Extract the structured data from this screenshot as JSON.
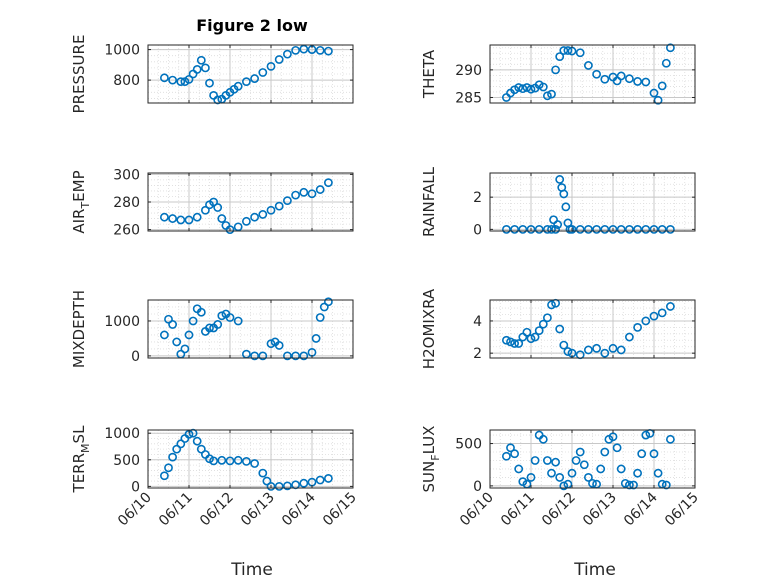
{
  "figure": {
    "title": "Figure 2 low",
    "xlabel": "Time"
  },
  "style": {
    "marker_color": "#0072bd",
    "axis_color": "#262626",
    "grid_color": "#dcdcdc"
  },
  "chart_data": [
    {
      "type": "scatter",
      "ylabel": "PRESSURE",
      "ylabel_sub": "",
      "ylabel_rest": "",
      "xlim": [
        0,
        5
      ],
      "ylim": [
        650,
        1030
      ],
      "yticks": [
        800,
        1000
      ],
      "xticks": [
        "06/10",
        "06/11",
        "06/12",
        "06/13",
        "06/14",
        "06/15"
      ],
      "x": [
        0.4,
        0.6,
        0.8,
        0.9,
        1.0,
        1.1,
        1.2,
        1.3,
        1.4,
        1.5,
        1.6,
        1.7,
        1.8,
        1.9,
        2.0,
        2.1,
        2.2,
        2.4,
        2.6,
        2.8,
        3.0,
        3.2,
        3.4,
        3.6,
        3.8,
        4.0,
        4.2,
        4.4
      ],
      "y": [
        815,
        800,
        790,
        790,
        805,
        840,
        870,
        930,
        880,
        780,
        700,
        670,
        675,
        700,
        720,
        740,
        760,
        790,
        810,
        850,
        890,
        935,
        970,
        995,
        1003,
        1000,
        995,
        990
      ]
    },
    {
      "type": "scatter",
      "ylabel": "THETA",
      "ylabel_sub": "",
      "ylabel_rest": "",
      "xlim": [
        0,
        5
      ],
      "ylim": [
        284,
        294.5
      ],
      "yticks": [
        285,
        290
      ],
      "xticks": [
        "06/10",
        "06/11",
        "06/12",
        "06/13",
        "06/14",
        "06/15"
      ],
      "x": [
        0.4,
        0.5,
        0.6,
        0.7,
        0.8,
        0.9,
        1.0,
        1.1,
        1.2,
        1.3,
        1.4,
        1.5,
        1.6,
        1.7,
        1.8,
        1.9,
        2.0,
        2.2,
        2.4,
        2.6,
        2.8,
        3.0,
        3.1,
        3.2,
        3.4,
        3.6,
        3.8,
        4.0,
        4.1,
        4.2,
        4.3,
        4.4
      ],
      "y": [
        285.0,
        285.8,
        286.4,
        286.8,
        286.6,
        286.8,
        286.5,
        286.7,
        287.3,
        286.9,
        285.3,
        285.6,
        290.0,
        292.4,
        293.5,
        293.5,
        293.4,
        293.1,
        290.8,
        289.2,
        288.3,
        288.7,
        288.0,
        288.9,
        288.4,
        287.9,
        287.8,
        285.8,
        284.5,
        287.1,
        291.2,
        294.0
      ]
    },
    {
      "type": "scatter",
      "ylabel": "AIR",
      "ylabel_sub": "T",
      "ylabel_rest": "EMP",
      "xlim": [
        0,
        5
      ],
      "ylim": [
        259,
        301
      ],
      "yticks": [
        260,
        280,
        300
      ],
      "xticks": [
        "06/10",
        "06/11",
        "06/12",
        "06/13",
        "06/14",
        "06/15"
      ],
      "x": [
        0.4,
        0.6,
        0.8,
        1.0,
        1.2,
        1.4,
        1.5,
        1.6,
        1.7,
        1.8,
        1.9,
        2.0,
        2.2,
        2.4,
        2.6,
        2.8,
        3.0,
        3.2,
        3.4,
        3.6,
        3.8,
        4.0,
        4.2,
        4.4
      ],
      "y": [
        269,
        268,
        267,
        267,
        269,
        274,
        278,
        280,
        276,
        268,
        263,
        260,
        262,
        266,
        269,
        271,
        274,
        277,
        281,
        285,
        287,
        286,
        289,
        294
      ]
    },
    {
      "type": "scatter",
      "ylabel": "RAINFALL",
      "ylabel_sub": "",
      "ylabel_rest": "",
      "xlim": [
        0,
        5
      ],
      "ylim": [
        -0.1,
        3.5
      ],
      "yticks": [
        0,
        2
      ],
      "xticks": [
        "06/10",
        "06/11",
        "06/12",
        "06/13",
        "06/14",
        "06/15"
      ],
      "x": [
        0.4,
        0.6,
        0.8,
        1.0,
        1.2,
        1.4,
        1.5,
        1.55,
        1.6,
        1.65,
        1.7,
        1.75,
        1.8,
        1.85,
        1.9,
        1.95,
        2.0,
        2.2,
        2.4,
        2.6,
        2.8,
        3.0,
        3.2,
        3.4,
        3.6,
        3.8,
        4.0,
        4.2,
        4.4
      ],
      "y": [
        0,
        0,
        0,
        0,
        0,
        0,
        0,
        0.6,
        0,
        0.3,
        3.1,
        2.6,
        2.2,
        1.4,
        0.4,
        0,
        0,
        0,
        0,
        0,
        0,
        0,
        0,
        0,
        0,
        0,
        0,
        0,
        0
      ]
    },
    {
      "type": "scatter",
      "ylabel": "MIXDEPTH",
      "ylabel_sub": "",
      "ylabel_rest": "",
      "xlim": [
        0,
        5
      ],
      "ylim": [
        -60,
        1600
      ],
      "yticks": [
        0,
        1000
      ],
      "xticks": [
        "06/10",
        "06/11",
        "06/12",
        "06/13",
        "06/14",
        "06/15"
      ],
      "x": [
        0.4,
        0.5,
        0.6,
        0.7,
        0.8,
        0.9,
        1.0,
        1.1,
        1.2,
        1.3,
        1.4,
        1.5,
        1.6,
        1.7,
        1.8,
        1.9,
        2.0,
        2.2,
        2.4,
        2.6,
        2.8,
        3.0,
        3.1,
        3.2,
        3.4,
        3.6,
        3.8,
        4.0,
        4.1,
        4.2,
        4.3,
        4.4
      ],
      "y": [
        600,
        1050,
        900,
        400,
        50,
        200,
        600,
        1000,
        1350,
        1250,
        700,
        800,
        800,
        900,
        1150,
        1200,
        1100,
        1000,
        50,
        0,
        0,
        350,
        400,
        300,
        0,
        0,
        0,
        100,
        500,
        1100,
        1400,
        1550
      ]
    },
    {
      "type": "scatter",
      "ylabel": "H2OMIXRA",
      "ylabel_sub": "",
      "ylabel_rest": "",
      "xlim": [
        0,
        5
      ],
      "ylim": [
        1.7,
        5.3
      ],
      "yticks": [
        2,
        4
      ],
      "xticks": [
        "06/10",
        "06/11",
        "06/12",
        "06/13",
        "06/14",
        "06/15"
      ],
      "x": [
        0.4,
        0.5,
        0.6,
        0.7,
        0.8,
        0.9,
        1.0,
        1.1,
        1.2,
        1.3,
        1.4,
        1.5,
        1.6,
        1.7,
        1.8,
        1.9,
        2.0,
        2.2,
        2.4,
        2.6,
        2.8,
        3.0,
        3.2,
        3.4,
        3.6,
        3.8,
        4.0,
        4.2,
        4.4
      ],
      "y": [
        2.8,
        2.7,
        2.6,
        2.6,
        3.0,
        3.3,
        2.9,
        3.0,
        3.4,
        3.8,
        4.2,
        5.0,
        5.1,
        3.5,
        2.5,
        2.1,
        2.0,
        1.9,
        2.2,
        2.3,
        2.0,
        2.3,
        2.2,
        3.0,
        3.6,
        4.0,
        4.3,
        4.5,
        4.9
      ]
    },
    {
      "type": "scatter",
      "ylabel": "TERR",
      "ylabel_sub": "M",
      "ylabel_rest": "SL",
      "xlim": [
        0,
        5
      ],
      "ylim": [
        -30,
        1060
      ],
      "yticks": [
        0,
        500,
        1000
      ],
      "xticks": [
        "06/10",
        "06/11",
        "06/12",
        "06/13",
        "06/14",
        "06/15"
      ],
      "x": [
        0.4,
        0.5,
        0.6,
        0.7,
        0.8,
        0.9,
        1.0,
        1.1,
        1.2,
        1.3,
        1.4,
        1.5,
        1.6,
        1.8,
        2.0,
        2.2,
        2.4,
        2.6,
        2.8,
        2.9,
        3.0,
        3.2,
        3.4,
        3.6,
        3.8,
        4.0,
        4.2,
        4.4
      ],
      "y": [
        200,
        350,
        550,
        700,
        800,
        900,
        980,
        1000,
        850,
        700,
        600,
        520,
        480,
        490,
        480,
        490,
        470,
        430,
        250,
        100,
        0,
        0,
        10,
        30,
        60,
        80,
        120,
        150
      ]
    },
    {
      "type": "scatter",
      "ylabel": "SUN",
      "ylabel_sub": "F",
      "ylabel_rest": "LUX",
      "xlim": [
        0,
        5
      ],
      "ylim": [
        -25,
        660
      ],
      "yticks": [
        0,
        500
      ],
      "xticks": [
        "06/10",
        "06/11",
        "06/12",
        "06/13",
        "06/14",
        "06/15"
      ],
      "x": [
        0.4,
        0.5,
        0.6,
        0.7,
        0.8,
        0.9,
        1.0,
        1.1,
        1.2,
        1.3,
        1.4,
        1.5,
        1.6,
        1.7,
        1.8,
        1.9,
        2.0,
        2.1,
        2.2,
        2.3,
        2.4,
        2.5,
        2.6,
        2.7,
        2.8,
        2.9,
        3.0,
        3.1,
        3.2,
        3.3,
        3.4,
        3.5,
        3.6,
        3.7,
        3.8,
        3.9,
        4.0,
        4.1,
        4.2,
        4.3,
        4.4
      ],
      "y": [
        350,
        450,
        380,
        200,
        50,
        20,
        100,
        300,
        600,
        550,
        300,
        150,
        280,
        100,
        0,
        20,
        150,
        300,
        400,
        250,
        100,
        30,
        20,
        200,
        400,
        550,
        580,
        450,
        200,
        30,
        10,
        10,
        150,
        380,
        600,
        620,
        380,
        150,
        20,
        10,
        550
      ]
    }
  ]
}
